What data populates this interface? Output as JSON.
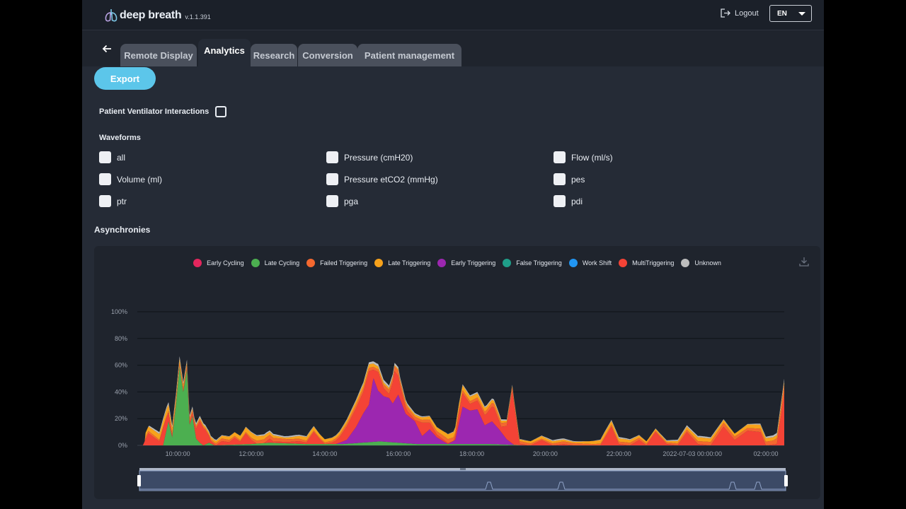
{
  "app": {
    "name": "deep breath",
    "version": "v.1.1.391"
  },
  "header": {
    "logout_label": "Logout",
    "language": "EN"
  },
  "tabs": [
    {
      "label": "Remote Display",
      "active": false
    },
    {
      "label": "Analytics",
      "active": true
    },
    {
      "label": "Research",
      "active": false
    },
    {
      "label": "Conversion",
      "active": false
    },
    {
      "label": "Patient management",
      "active": false
    }
  ],
  "toolbar": {
    "export_label": "Export"
  },
  "pvi": {
    "label": "Patient Ventilator Interactions",
    "checked": false
  },
  "waveforms": {
    "title": "Waveforms",
    "items": [
      {
        "label": "all",
        "checked": false
      },
      {
        "label": "Pressure (cmH20)",
        "checked": false
      },
      {
        "label": "Flow (ml/s)",
        "checked": false
      },
      {
        "label": "Volume (ml)",
        "checked": false
      },
      {
        "label": "Pressure etCO2 (mmHg)",
        "checked": false
      },
      {
        "label": "pes",
        "checked": false
      },
      {
        "label": "ptr",
        "checked": false
      },
      {
        "label": "pga",
        "checked": false
      },
      {
        "label": "pdi",
        "checked": false
      }
    ]
  },
  "asynchronies": {
    "title": "Asynchronies"
  },
  "colors": {
    "accent": "#5cc6ea",
    "background": "#252b36",
    "topbar": "#1b2029"
  },
  "chart_data": {
    "type": "area",
    "stacked": true,
    "legend_position": "top-center",
    "legend": [
      {
        "name": "Early Cycling",
        "color": "#e3265d"
      },
      {
        "name": "Late Cycling",
        "color": "#4caf50"
      },
      {
        "name": "Failed Triggering",
        "color": "#f4682f"
      },
      {
        "name": "Late Triggering",
        "color": "#f7a21b"
      },
      {
        "name": "Early Triggering",
        "color": "#9c27b0"
      },
      {
        "name": "False Triggering",
        "color": "#1f9e89"
      },
      {
        "name": "Work Shift",
        "color": "#2196f3"
      },
      {
        "name": "MultiTriggering",
        "color": "#f44336"
      },
      {
        "name": "Unknown",
        "color": "#bdbdbd"
      }
    ],
    "y_ticks": [
      "100%",
      "80%",
      "60%",
      "40%",
      "20%",
      "0%"
    ],
    "ylim": [
      0,
      100
    ],
    "x_ticks": [
      "10:00:00",
      "12:00:00",
      "14:00:00",
      "16:00:00",
      "18:00:00",
      "20:00:00",
      "22:00:00",
      "2022-07-03 00:00:00",
      "02:00:00"
    ],
    "x_range_hours": [
      8.9,
      26.5
    ],
    "grid": true,
    "series": [
      {
        "name": "Late Cycling",
        "color": "#4caf50",
        "x": [
          9.6,
          9.75,
          9.85,
          9.95,
          10.05,
          10.15,
          10.25,
          10.32,
          10.4,
          10.5,
          10.6,
          10.7,
          10.85,
          11.0,
          12.0,
          12.5,
          13.5,
          14.5,
          15.5,
          16.5,
          17.5,
          18.5,
          19.5
        ],
        "values": [
          0,
          18,
          6,
          30,
          59,
          40,
          57,
          15,
          22,
          5,
          2,
          0,
          2,
          0,
          1,
          2,
          1,
          1,
          3,
          1,
          1,
          1,
          0
        ]
      },
      {
        "name": "Early Triggering",
        "color": "#9c27b0",
        "x": [
          14.3,
          14.6,
          14.85,
          15.05,
          15.2,
          15.32,
          15.45,
          15.6,
          15.75,
          15.85,
          16.0,
          16.2,
          16.45,
          16.65,
          16.85,
          17.05,
          17.35,
          17.55,
          17.75,
          17.95,
          18.15,
          18.35,
          18.55,
          18.75,
          18.95,
          19.15
        ],
        "values": [
          0,
          3,
          12,
          22,
          28,
          48,
          38,
          34,
          33,
          29,
          36,
          22,
          17,
          6,
          11,
          5,
          0,
          3,
          28,
          25,
          26,
          14,
          17,
          11,
          4,
          0
        ]
      },
      {
        "name": "MultiTriggering",
        "color": "#f44336",
        "x": [
          9.05,
          9.2,
          9.35,
          9.5,
          9.6,
          9.7,
          9.85,
          10.0,
          10.1,
          10.25,
          10.45,
          10.6,
          10.75,
          10.9,
          11.05,
          11.2,
          11.4,
          11.55,
          11.7,
          11.85,
          12.0,
          12.15,
          12.35,
          12.5,
          12.6,
          12.8,
          13.0,
          13.3,
          13.5,
          13.7,
          13.85,
          14.0,
          14.2,
          14.4,
          14.6,
          14.85,
          15.05,
          15.2,
          15.32,
          15.45,
          15.6,
          15.75,
          15.9,
          16.05,
          16.25,
          16.45,
          16.65,
          16.85,
          17.05,
          17.3,
          17.5,
          17.65,
          17.75,
          17.95,
          18.2,
          18.4,
          18.6,
          18.8,
          18.95,
          19.1,
          19.3,
          19.6,
          19.9,
          20.2,
          20.5,
          20.75,
          21.0,
          21.3,
          21.5,
          21.8,
          22.0,
          22.3,
          22.55,
          22.75,
          23.0,
          23.3,
          23.6,
          23.85,
          24.15,
          24.5,
          24.85,
          25.15,
          25.5,
          25.85,
          26.0,
          26.3,
          26.55
        ],
        "values": [
          0,
          9,
          6,
          3,
          13,
          9,
          1,
          0,
          0,
          1,
          3,
          16,
          11,
          2,
          0,
          3,
          2,
          5,
          2,
          8,
          3,
          0,
          0,
          3,
          1,
          1,
          1,
          2,
          1,
          9,
          4,
          0,
          1,
          4,
          10,
          14,
          16,
          25,
          6,
          14,
          6,
          3,
          22,
          10,
          3,
          1,
          10,
          5,
          2,
          1,
          0,
          8,
          10,
          5,
          7,
          8,
          12,
          4,
          10,
          40,
          1,
          0,
          4,
          0,
          1,
          0,
          0,
          0,
          0,
          14,
          1,
          0,
          4,
          0,
          10,
          1,
          0,
          10,
          1,
          0,
          14,
          4,
          11,
          10,
          0,
          1,
          48
        ]
      },
      {
        "name": "Failed Triggering",
        "color": "#f4682f",
        "x": [
          9.1,
          9.6,
          10.1,
          10.8,
          11.2,
          11.8,
          12.4,
          13.1,
          13.9,
          14.5,
          15.0,
          15.4,
          16.0,
          16.6,
          17.3,
          18.0,
          18.7,
          19.3,
          19.9,
          20.5,
          21.3,
          22.2,
          23.1,
          24.0,
          24.9,
          25.5,
          26.2,
          26.55
        ],
        "values": [
          2,
          1,
          3,
          1,
          2,
          1,
          3,
          2,
          1,
          2,
          3,
          2,
          4,
          2,
          3,
          2,
          3,
          2,
          1,
          2,
          1,
          2,
          1,
          2,
          3,
          2,
          3,
          8
        ]
      },
      {
        "name": "Late Triggering",
        "color": "#f7a21b",
        "x": [
          9.1,
          9.7,
          10.4,
          11.2,
          12.0,
          12.9,
          13.6,
          14.3,
          15.1,
          15.9,
          16.7,
          17.5,
          18.3,
          19.1,
          19.9,
          20.8,
          21.6,
          22.4,
          23.3,
          24.2,
          25.0,
          25.8,
          26.55
        ],
        "values": [
          3,
          5,
          1,
          2,
          4,
          1,
          3,
          2,
          3,
          1,
          2,
          4,
          3,
          1,
          2,
          1,
          3,
          2,
          1,
          3,
          2,
          3,
          2
        ]
      },
      {
        "name": "Unknown",
        "color": "#bdbdbd",
        "x": [
          9.2,
          10.0,
          10.8,
          11.6,
          12.4,
          13.2,
          14.0,
          14.8,
          15.6,
          16.4,
          17.2,
          18.0,
          18.8,
          19.6,
          20.4,
          21.2,
          22.0,
          22.8,
          23.6,
          24.4,
          25.2,
          26.0,
          26.5,
          26.55
        ],
        "values": [
          1,
          2,
          1,
          0,
          1,
          1,
          0,
          1,
          2,
          1,
          0,
          1,
          1,
          0,
          1,
          0,
          1,
          0,
          1,
          1,
          0,
          1,
          2,
          10
        ]
      }
    ],
    "navigator_range_hours": [
      8.9,
      26.5
    ]
  }
}
